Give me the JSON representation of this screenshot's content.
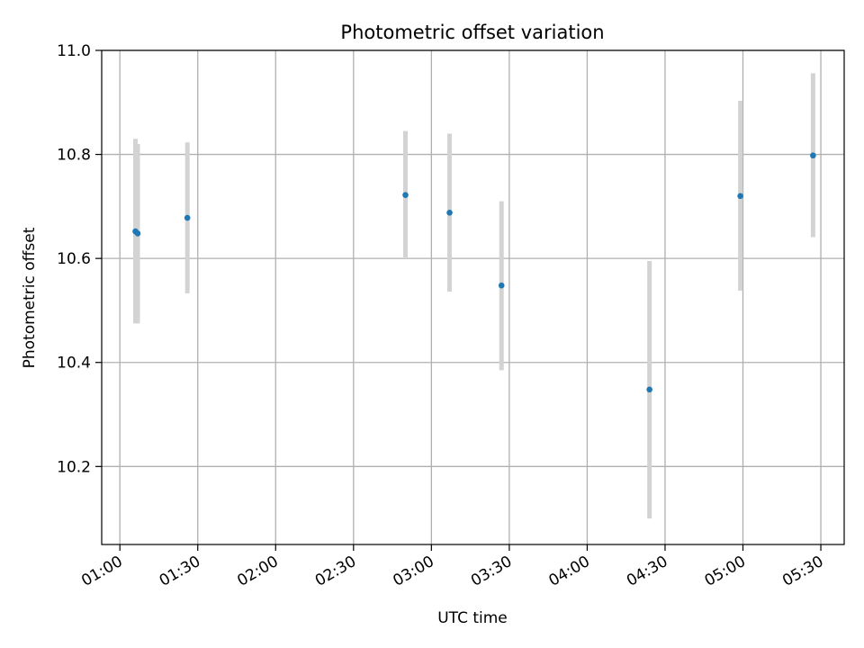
{
  "chart_data": {
    "type": "scatter",
    "title": "Photometric offset variation",
    "xlabel": "UTC time",
    "ylabel": "Photometric offset",
    "xlim": [
      "00:53",
      "05:39"
    ],
    "ylim": [
      10.05,
      11.0
    ],
    "x_ticks": [
      "01:00",
      "01:30",
      "02:00",
      "02:30",
      "03:00",
      "03:30",
      "04:00",
      "04:30",
      "05:00",
      "05:30"
    ],
    "y_ticks": [
      "10.2",
      "10.4",
      "10.6",
      "10.8",
      "11.0"
    ],
    "grid": true,
    "colors": {
      "points": "#1f77b4",
      "errorbars": "#d3d3d3",
      "grid": "#b0b0b0"
    },
    "points": [
      {
        "x": "01:06",
        "y": 10.652,
        "y_low": 10.475,
        "y_high": 10.83
      },
      {
        "x": "01:06",
        "y": 10.648,
        "y_low": 10.475,
        "y_high": 10.82
      },
      {
        "x": "01:26",
        "y": 10.678,
        "y_low": 10.533,
        "y_high": 10.823
      },
      {
        "x": "02:50",
        "y": 10.722,
        "y_low": 10.602,
        "y_high": 10.845
      },
      {
        "x": "03:07",
        "y": 10.688,
        "y_low": 10.536,
        "y_high": 10.84
      },
      {
        "x": "03:27",
        "y": 10.548,
        "y_low": 10.385,
        "y_high": 10.71
      },
      {
        "x": "04:24",
        "y": 10.348,
        "y_low": 10.1,
        "y_high": 10.595
      },
      {
        "x": "04:59",
        "y": 10.72,
        "y_low": 10.538,
        "y_high": 10.903
      },
      {
        "x": "05:27",
        "y": 10.798,
        "y_low": 10.641,
        "y_high": 10.956
      }
    ]
  }
}
